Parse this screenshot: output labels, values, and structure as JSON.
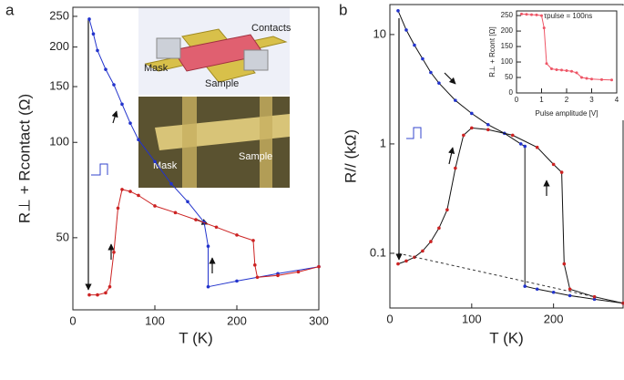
{
  "panel_labels": [
    "a",
    "b"
  ],
  "schematic": {
    "labels": [
      "Contacts",
      "Mask",
      "Sample"
    ],
    "photo_labels": [
      "Mask",
      "Sample"
    ]
  },
  "chart_data": [
    {
      "type": "scatter",
      "xlabel": "T (K)",
      "ylabel": "R⊥ + Rcontact (Ω)",
      "xlim": [
        0,
        300
      ],
      "xticks": [
        0,
        100,
        200,
        300
      ],
      "ylim": [
        29.6,
        267
      ],
      "yticks": [
        50,
        100,
        150,
        200,
        250
      ],
      "ylog": true,
      "series": [
        {
          "color": "#2233cc",
          "line_color": "#2233cc",
          "x": [
            20,
            25,
            30,
            40,
            50,
            60,
            70,
            80,
            100,
            120,
            140,
            160,
            165,
            165,
            200,
            250,
            300
          ],
          "values": [
            245,
            220,
            195,
            170,
            152,
            132,
            115,
            102,
            87,
            74,
            65,
            56,
            47,
            35,
            36.5,
            38.5,
            40.5
          ]
        },
        {
          "color": "#cc2222",
          "line_color": "#cc2222",
          "x": [
            20,
            30,
            40,
            45,
            50,
            55,
            60,
            70,
            80,
            100,
            125,
            150,
            175,
            200,
            220,
            222,
            225,
            250,
            275,
            300
          ],
          "values": [
            33,
            33,
            33.5,
            35,
            45,
            62,
            71,
            70,
            68,
            63,
            60,
            57,
            54,
            51,
            49,
            41,
            37.5,
            38,
            39,
            40.5
          ]
        }
      ]
    },
    {
      "type": "scatter",
      "xlabel": "T (K)",
      "ylabel": "R// (kΩ)",
      "xlim": [
        0,
        285
      ],
      "xticks": [
        0,
        100,
        200
      ],
      "ylim": [
        0.0316,
        18.8
      ],
      "yticks": [
        0.1,
        1,
        10
      ],
      "ylog": true,
      "series": [
        {
          "color": "#2233cc",
          "line_color": "#111111",
          "x": [
            10,
            20,
            30,
            40,
            50,
            60,
            80,
            100,
            120,
            140,
            160,
            165,
            165,
            180,
            200,
            220,
            250,
            285
          ],
          "values": [
            16.5,
            11,
            8,
            6,
            4.5,
            3.6,
            2.5,
            1.9,
            1.5,
            1.25,
            1.0,
            0.95,
            0.05,
            0.047,
            0.044,
            0.041,
            0.038,
            0.035
          ]
        },
        {
          "color": "#cc2222",
          "line_color": "#111111",
          "x": [
            10,
            20,
            30,
            40,
            50,
            60,
            70,
            80,
            90,
            100,
            120,
            150,
            180,
            200,
            210,
            213,
            220,
            250,
            285
          ],
          "values": [
            0.08,
            0.085,
            0.092,
            0.105,
            0.128,
            0.17,
            0.25,
            0.6,
            1.2,
            1.4,
            1.35,
            1.2,
            0.93,
            0.65,
            0.55,
            0.08,
            0.047,
            0.04,
            0.035
          ]
        },
        {
          "color": "none",
          "line_color": "#333333",
          "dashed": true,
          "x": [
            10,
            285
          ],
          "values": [
            0.1,
            0.035
          ]
        }
      ]
    },
    {
      "type": "scatter",
      "xlabel": "Pulse amplitude [V]",
      "ylabel": "R⊥ + Rcont [Ω]",
      "annotation": "τpulse = 100ns",
      "xlim": [
        0,
        4
      ],
      "xticks": [
        0,
        1,
        2,
        3,
        4
      ],
      "ylim": [
        0,
        265
      ],
      "yticks": [
        0,
        50,
        100,
        150,
        200,
        250
      ],
      "ylog": false,
      "series": [
        {
          "color": "#ee5566",
          "line_color": "#ee5566",
          "x": [
            0.2,
            0.4,
            0.6,
            0.8,
            1.0,
            1.1,
            1.2,
            1.4,
            1.6,
            1.8,
            2.0,
            2.2,
            2.4,
            2.6,
            2.8,
            3.0,
            3.4,
            3.8
          ],
          "values": [
            255,
            254,
            253,
            252,
            250,
            210,
            95,
            78,
            75,
            74,
            72,
            70,
            65,
            50,
            47,
            45,
            43,
            42
          ]
        }
      ]
    }
  ]
}
